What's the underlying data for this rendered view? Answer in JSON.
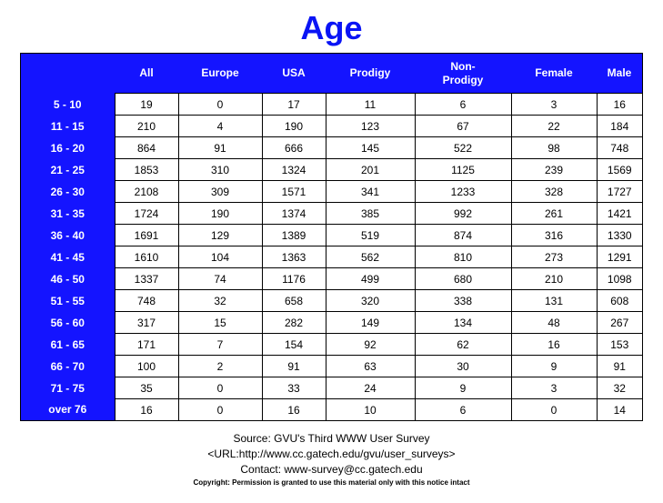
{
  "chart_data": {
    "type": "table",
    "title": "Age",
    "columns": [
      "All",
      "Europe",
      "USA",
      "Prodigy",
      "Non-Prodigy",
      "Female",
      "Male"
    ],
    "rows": [
      {
        "label": "5 - 10",
        "values": [
          19,
          0,
          17,
          11,
          6,
          3,
          16
        ]
      },
      {
        "label": "11 - 15",
        "values": [
          210,
          4,
          190,
          123,
          67,
          22,
          184
        ]
      },
      {
        "label": "16 - 20",
        "values": [
          864,
          91,
          666,
          145,
          522,
          98,
          748
        ]
      },
      {
        "label": "21 - 25",
        "values": [
          1853,
          310,
          1324,
          201,
          1125,
          239,
          1569
        ]
      },
      {
        "label": "26 - 30",
        "values": [
          2108,
          309,
          1571,
          341,
          1233,
          328,
          1727
        ]
      },
      {
        "label": "31 - 35",
        "values": [
          1724,
          190,
          1374,
          385,
          992,
          261,
          1421
        ]
      },
      {
        "label": "36 - 40",
        "values": [
          1691,
          129,
          1389,
          519,
          874,
          316,
          1330
        ]
      },
      {
        "label": "41 - 45",
        "values": [
          1610,
          104,
          1363,
          562,
          810,
          273,
          1291
        ]
      },
      {
        "label": "46 - 50",
        "values": [
          1337,
          74,
          1176,
          499,
          680,
          210,
          1098
        ]
      },
      {
        "label": "51 - 55",
        "values": [
          748,
          32,
          658,
          320,
          338,
          131,
          608
        ]
      },
      {
        "label": "56 - 60",
        "values": [
          317,
          15,
          282,
          149,
          134,
          48,
          267
        ]
      },
      {
        "label": "61 - 65",
        "values": [
          171,
          7,
          154,
          92,
          62,
          16,
          153
        ]
      },
      {
        "label": "66 - 70",
        "values": [
          100,
          2,
          91,
          63,
          30,
          9,
          91
        ]
      },
      {
        "label": "71 - 75",
        "values": [
          35,
          0,
          33,
          24,
          9,
          3,
          32
        ]
      },
      {
        "label": "over 76",
        "values": [
          16,
          0,
          16,
          10,
          6,
          0,
          14
        ]
      }
    ],
    "header_color": "#1414ff",
    "title_color": "#0a14f5"
  },
  "footer": {
    "source": "Source: GVU's Third WWW User Survey",
    "url": "<URL:http://www.cc.gatech.edu/gvu/user_surveys>",
    "contact": "Contact: www-survey@cc.gatech.edu",
    "copyright": "Copyright: Permission is granted to use this material only with this notice intact"
  }
}
